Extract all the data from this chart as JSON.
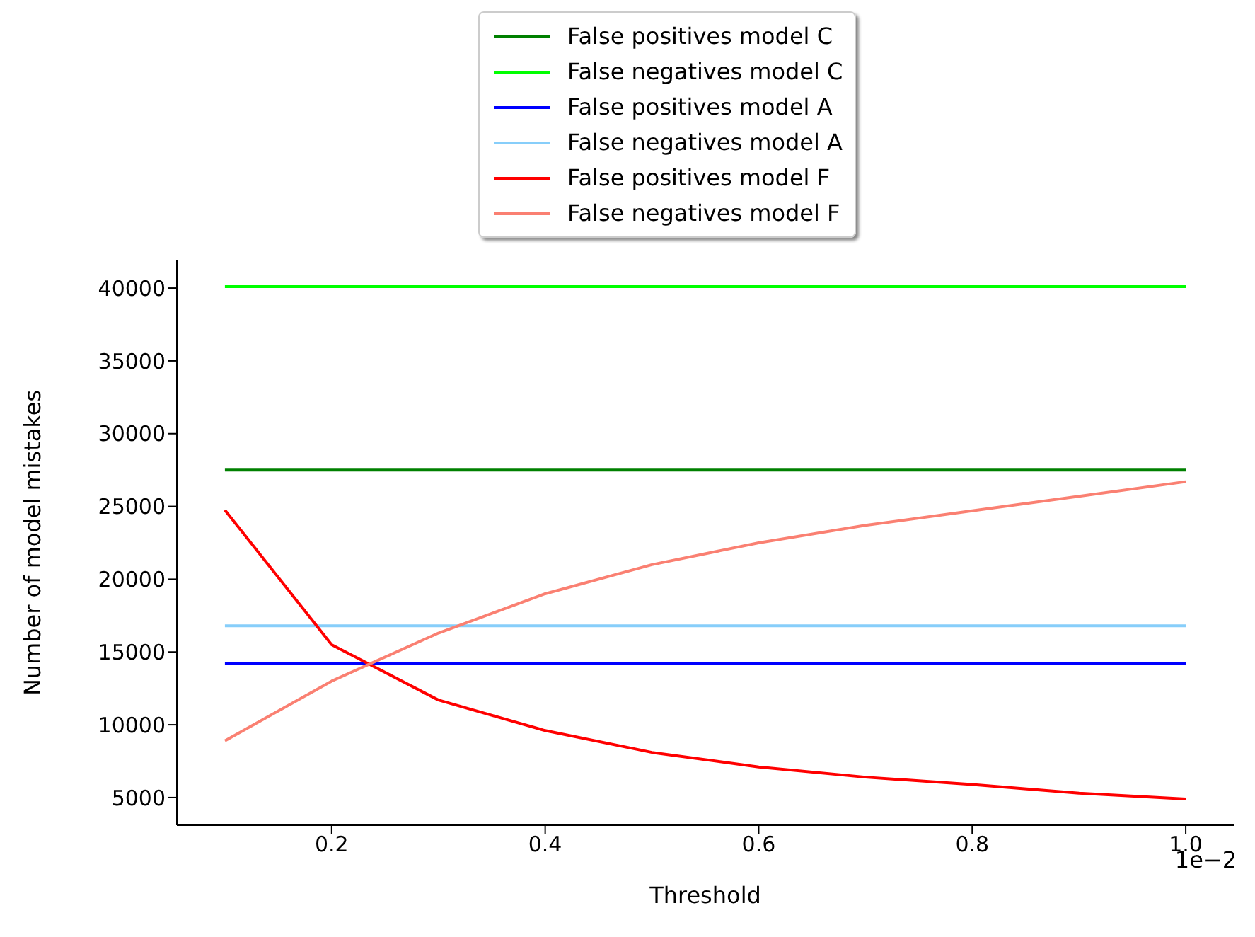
{
  "chart_data": {
    "type": "line",
    "xlabel": "Threshold",
    "ylabel": "Number of model mistakes",
    "annotations": [
      "1e−2"
    ],
    "x": [
      0.1,
      0.2,
      0.3,
      0.4,
      0.5,
      0.6,
      0.7,
      0.8,
      0.9,
      1.0
    ],
    "xlim": [
      0.055,
      1.045
    ],
    "xticks": [
      {
        "value": 0.2,
        "label": "0.2"
      },
      {
        "value": 0.4,
        "label": "0.4"
      },
      {
        "value": 0.6,
        "label": "0.6"
      },
      {
        "value": 0.8,
        "label": "0.8"
      },
      {
        "value": 1.0,
        "label": "1.0"
      }
    ],
    "ylim": [
      3100,
      41900
    ],
    "yticks": [
      5000,
      10000,
      15000,
      20000,
      25000,
      30000,
      35000,
      40000
    ],
    "legend": "top",
    "grid": false,
    "marker": "none",
    "line_style": "solid",
    "series": [
      {
        "name": "False positives model C",
        "color": "#008000",
        "values": [
          27500,
          27500,
          27500,
          27500,
          27500,
          27500,
          27500,
          27500,
          27500,
          27500
        ]
      },
      {
        "name": "False negatives model C",
        "color": "#00ff00",
        "values": [
          40100,
          40100,
          40100,
          40100,
          40100,
          40100,
          40100,
          40100,
          40100,
          40100
        ]
      },
      {
        "name": "False positives model A",
        "color": "#0000ff",
        "values": [
          14200,
          14200,
          14200,
          14200,
          14200,
          14200,
          14200,
          14200,
          14200,
          14200
        ]
      },
      {
        "name": "False negatives model A",
        "color": "#87cefa",
        "values": [
          16800,
          16800,
          16800,
          16800,
          16800,
          16800,
          16800,
          16800,
          16800,
          16800
        ]
      },
      {
        "name": "False positives model F",
        "color": "#ff0000",
        "values": [
          24750,
          15500,
          11700,
          9600,
          8100,
          7100,
          6400,
          5900,
          5300,
          4900
        ]
      },
      {
        "name": "False negatives model F",
        "color": "#fa8072",
        "values": [
          8900,
          13000,
          16300,
          19000,
          21000,
          22500,
          23700,
          24700,
          25700,
          26700
        ]
      }
    ]
  }
}
